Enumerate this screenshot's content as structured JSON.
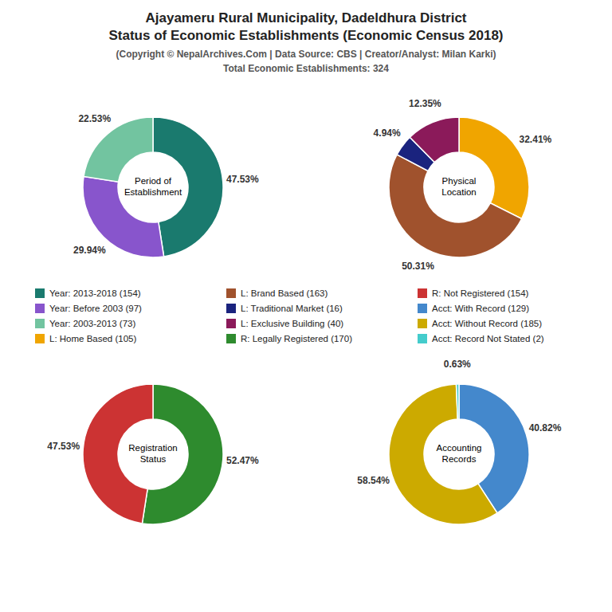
{
  "title": "Ajayameru Rural Municipality, Dadeldhura District\nStatus of Economic Establishments (Economic Census 2018)",
  "subtitle": "(Copyright © NepalArchives.Com | Data Source: CBS | Creator/Analyst: Milan Karki)\nTotal Economic Establishments: 324",
  "chart_data": [
    {
      "type": "pie",
      "title": "Period of\nEstablishment",
      "categories": [
        "Year: 2013-2018 (154)",
        "Year: Before 2003 (97)",
        "Year: 2003-2013 (73)"
      ],
      "values": [
        47.53,
        29.94,
        22.53
      ],
      "value_labels": [
        "47.53%",
        "29.94%",
        "22.53%"
      ],
      "colors": [
        "#1a7a6e",
        "#8855cc",
        "#72c4a0"
      ],
      "data_labels": true,
      "legend": "center"
    },
    {
      "type": "pie",
      "title": "Physical\nLocation",
      "categories": [
        "L: Home Based (105)",
        "L: Brand Based (163)",
        "L: Traditional Market (16)",
        "L: Exclusive Building (40)"
      ],
      "values": [
        32.41,
        50.31,
        4.94,
        12.35
      ],
      "value_labels": [
        "32.41%",
        "50.31%",
        "4.94%",
        "12.35%"
      ],
      "colors": [
        "#f0a500",
        "#a0522d",
        "#1a237e",
        "#8b1a5a"
      ],
      "data_labels": true,
      "legend": "center"
    },
    {
      "type": "pie",
      "title": "Registration\nStatus",
      "categories": [
        "R: Legally Registered (170)",
        "R: Not Registered (154)"
      ],
      "values": [
        52.47,
        47.53
      ],
      "value_labels": [
        "52.47%",
        "47.53%"
      ],
      "colors": [
        "#2e8b2e",
        "#cc3333"
      ],
      "data_labels": true,
      "legend": "center"
    },
    {
      "type": "pie",
      "title": "Accounting\nRecords",
      "categories": [
        "Acct: With Record (129)",
        "Acct: Without Record (185)",
        "Acct: Record Not Stated (2)"
      ],
      "values": [
        40.82,
        58.54,
        0.63
      ],
      "value_labels": [
        "40.82%",
        "58.54%",
        "0.63%"
      ],
      "colors": [
        "#4488cc",
        "#ccaa00",
        "#44cccc"
      ],
      "data_labels": true,
      "legend": "center"
    }
  ]
}
